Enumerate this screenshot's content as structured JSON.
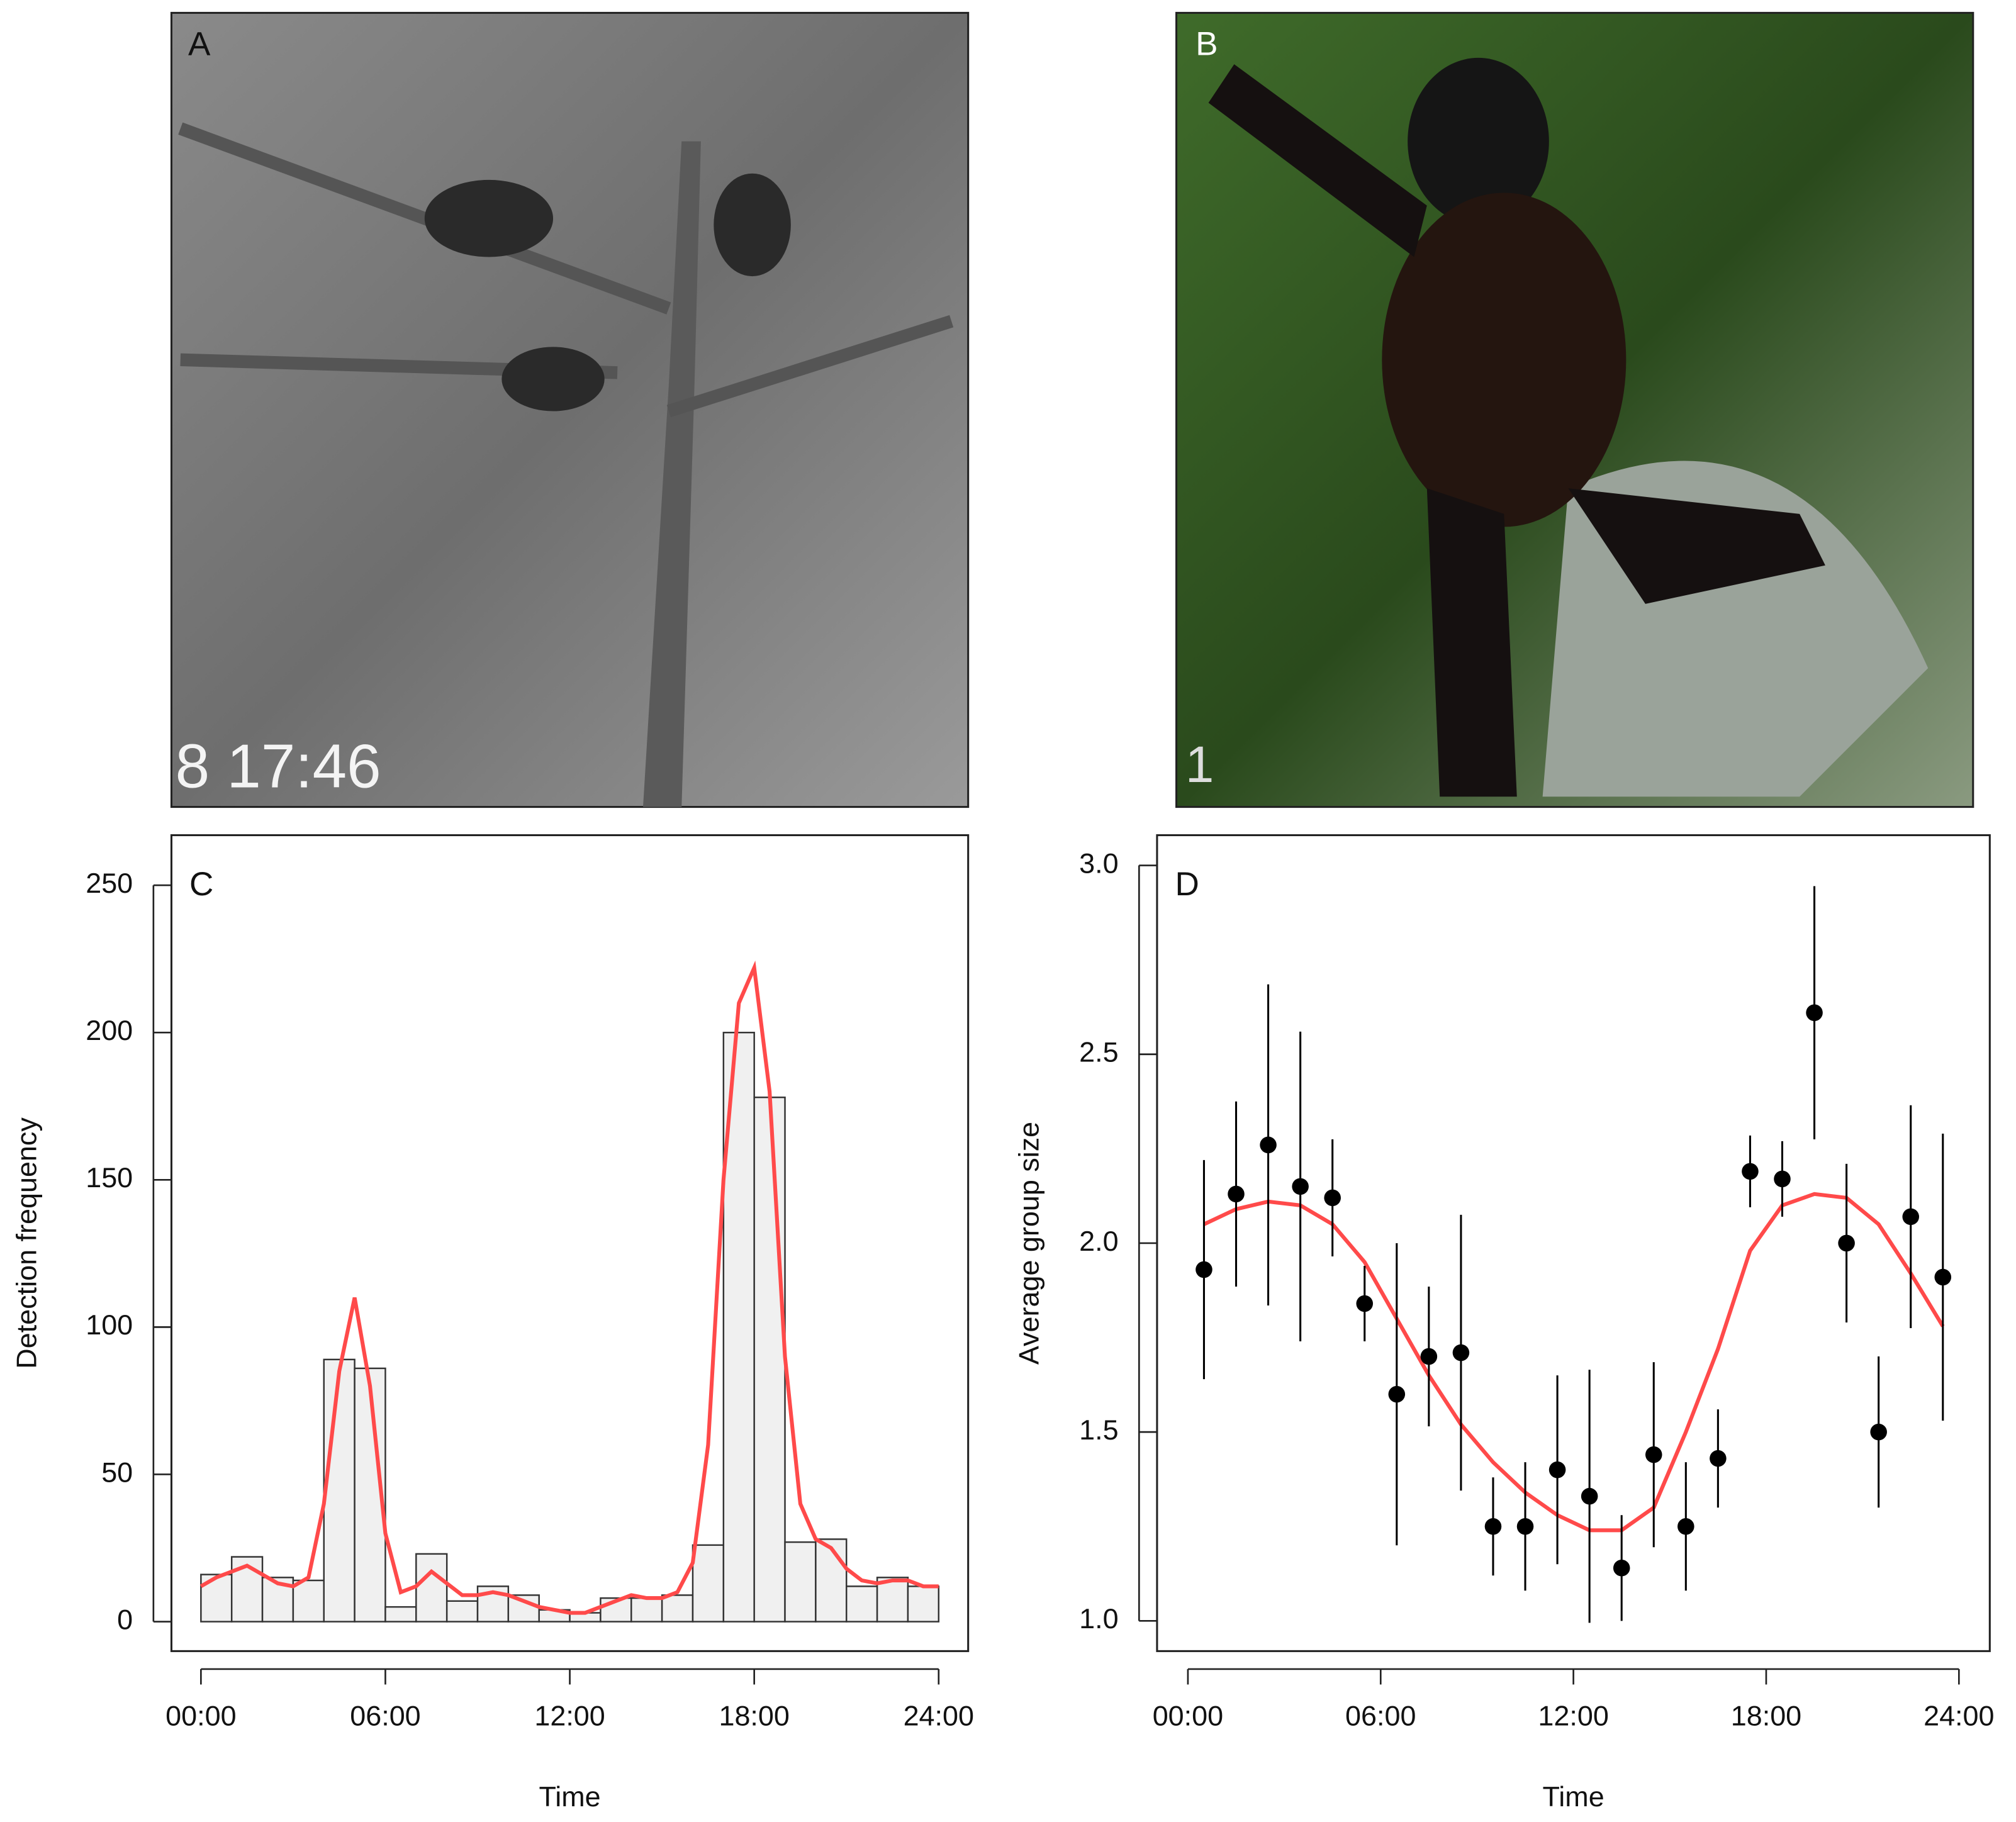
{
  "photos": [
    {
      "label": "A",
      "overlay": "8 17:46"
    },
    {
      "label": "B",
      "overlay": "1"
    }
  ],
  "chart_data": [
    {
      "type": "histogram",
      "label": "C",
      "xlabel": "Time",
      "ylabel": "Detection frequency",
      "bins": [
        0,
        1,
        2,
        3,
        4,
        5,
        6,
        7,
        8,
        9,
        10,
        11,
        12,
        13,
        14,
        15,
        16,
        17,
        18,
        19,
        20,
        21,
        22,
        23,
        24
      ],
      "values": [
        16,
        22,
        15,
        14,
        89,
        86,
        5,
        23,
        7,
        12,
        9,
        4,
        3,
        8,
        8,
        9,
        26,
        200,
        178,
        27,
        28,
        12,
        15,
        12
      ],
      "color": "#f0f0f0",
      "density": {
        "color": "#ff4a4a",
        "x": [
          0,
          0.5,
          1,
          1.5,
          2,
          2.5,
          3,
          3.5,
          4,
          4.5,
          5,
          5.5,
          6,
          6.5,
          7,
          7.5,
          8,
          8.5,
          9,
          9.5,
          10,
          10.5,
          11,
          11.5,
          12,
          12.5,
          13,
          13.5,
          14,
          14.5,
          15,
          15.5,
          16,
          16.5,
          17,
          17.5,
          18,
          18.5,
          19,
          19.5,
          20,
          20.5,
          21,
          21.5,
          22,
          22.5,
          23,
          23.5,
          24
        ],
        "values": [
          12,
          15,
          17,
          19,
          16,
          13,
          12,
          15,
          40,
          85,
          110,
          80,
          30,
          10,
          12,
          17,
          13,
          9,
          9,
          10,
          9,
          7,
          5,
          4,
          3,
          3,
          5,
          7,
          9,
          8,
          8,
          10,
          20,
          60,
          150,
          210,
          222,
          180,
          90,
          40,
          28,
          25,
          18,
          14,
          13,
          14,
          14,
          12,
          12
        ]
      },
      "xlim": [
        -0.96,
        24.96
      ],
      "ylim": [
        -10,
        267
      ],
      "xticks": [
        {
          "value": 0,
          "label": "00:00"
        },
        {
          "value": 6,
          "label": "06:00"
        },
        {
          "value": 12,
          "label": "12:00"
        },
        {
          "value": 18,
          "label": "18:00"
        },
        {
          "value": 24,
          "label": "24:00"
        }
      ],
      "yticks": [
        0,
        50,
        100,
        150,
        200,
        250
      ]
    },
    {
      "type": "scatter",
      "label": "D",
      "xlabel": "Time",
      "ylabel": "Average group size",
      "x": [
        0.5,
        1.5,
        2.5,
        3.5,
        4.5,
        5.5,
        6.5,
        7.5,
        8.5,
        9.5,
        10.5,
        11.5,
        12.5,
        13.5,
        14.5,
        15.5,
        16.5,
        17.5,
        18.5,
        19.5,
        20.5,
        21.5,
        22.5,
        23.5
      ],
      "values": [
        1.93,
        2.13,
        2.26,
        2.15,
        2.12,
        1.84,
        1.6,
        1.7,
        1.71,
        1.25,
        1.25,
        1.4,
        1.33,
        1.14,
        1.44,
        1.25,
        1.43,
        2.19,
        2.17,
        2.61,
        2.0,
        1.5,
        2.07,
        1.91
      ],
      "errors": [
        0.29,
        0.245,
        0.425,
        0.41,
        0.155,
        0.1,
        0.4,
        0.185,
        0.365,
        0.13,
        0.17,
        0.25,
        0.335,
        0.14,
        0.245,
        0.17,
        0.13,
        0.095,
        0.1,
        0.335,
        0.21,
        0.2,
        0.295,
        0.38
      ],
      "color": "#000000",
      "fit": {
        "color": "#ff4a4a",
        "x": [
          0.5,
          1.5,
          2.5,
          3.5,
          4.5,
          5.5,
          6.5,
          7.5,
          8.5,
          9.5,
          10.5,
          11.5,
          12.5,
          13.5,
          14.5,
          15.5,
          16.5,
          17.5,
          18.5,
          19.5,
          20.5,
          21.5,
          22.5,
          23.5
        ],
        "values": [
          2.05,
          2.09,
          2.11,
          2.1,
          2.05,
          1.95,
          1.8,
          1.65,
          1.52,
          1.42,
          1.34,
          1.28,
          1.24,
          1.24,
          1.3,
          1.5,
          1.72,
          1.98,
          2.1,
          2.13,
          2.12,
          2.05,
          1.92,
          1.78
        ]
      },
      "xlim": [
        -0.96,
        24.96
      ],
      "ylim": [
        0.92,
        3.08
      ],
      "xticks": [
        {
          "value": 0,
          "label": "00:00"
        },
        {
          "value": 6,
          "label": "06:00"
        },
        {
          "value": 12,
          "label": "12:00"
        },
        {
          "value": 18,
          "label": "18:00"
        },
        {
          "value": 24,
          "label": "24:00"
        }
      ],
      "yticks": [
        {
          "value": 1,
          "label": "1.0"
        },
        1.5,
        {
          "value": 2,
          "label": "2.0"
        },
        2.5,
        {
          "value": 3,
          "label": "3.0"
        }
      ]
    }
  ]
}
